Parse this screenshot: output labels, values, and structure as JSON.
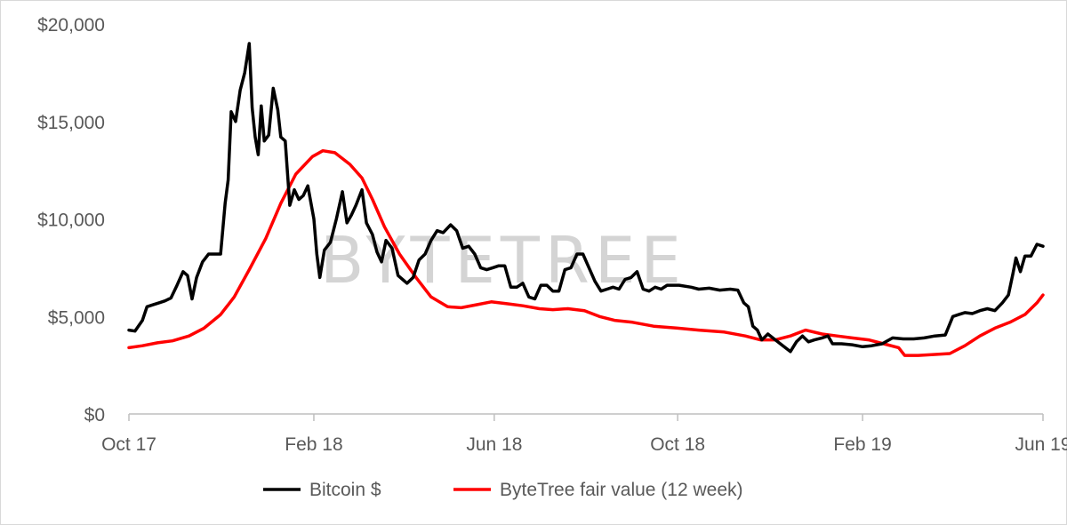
{
  "watermark": "BYTETREE",
  "colors": {
    "bitcoin": "#000000",
    "fair_value": "#ff0000",
    "axis": "#bfbfbf",
    "text": "#595959"
  },
  "chart_data": {
    "type": "line",
    "title": "",
    "xlabel": "",
    "ylabel": "",
    "x_ticks": [
      {
        "date": "2017-10-01",
        "label": "Oct 17"
      },
      {
        "date": "2018-02-01",
        "label": "Feb 18"
      },
      {
        "date": "2018-06-01",
        "label": "Jun 18"
      },
      {
        "date": "2018-10-01",
        "label": "Oct 18"
      },
      {
        "date": "2019-02-01",
        "label": "Feb 19"
      },
      {
        "date": "2019-06-01",
        "label": "Jun 19"
      }
    ],
    "y_ticks": [
      {
        "value": 0,
        "label": "$0"
      },
      {
        "value": 5000,
        "label": "$5,000"
      },
      {
        "value": 10000,
        "label": "$10,000"
      },
      {
        "value": 15000,
        "label": "$15,000"
      },
      {
        "value": 20000,
        "label": "$20,000"
      }
    ],
    "xlim": [
      "2017-10-01",
      "2019-06-01"
    ],
    "ylim": [
      0,
      20000
    ],
    "grid": false,
    "legend_position": "bottom",
    "series": [
      {
        "name": "Bitcoin $",
        "points": [
          [
            "2017-10-01",
            4300
          ],
          [
            "2017-10-05",
            4250
          ],
          [
            "2017-10-10",
            4800
          ],
          [
            "2017-10-13",
            5500
          ],
          [
            "2017-10-17",
            5600
          ],
          [
            "2017-10-21",
            5700
          ],
          [
            "2017-10-25",
            5800
          ],
          [
            "2017-10-29",
            5950
          ],
          [
            "2017-11-02",
            6600
          ],
          [
            "2017-11-06",
            7300
          ],
          [
            "2017-11-09",
            7100
          ],
          [
            "2017-11-12",
            5900
          ],
          [
            "2017-11-15",
            7000
          ],
          [
            "2017-11-19",
            7800
          ],
          [
            "2017-11-23",
            8200
          ],
          [
            "2017-11-27",
            8200
          ],
          [
            "2017-12-01",
            8200
          ],
          [
            "2017-12-04",
            10800
          ],
          [
            "2017-12-06",
            12000
          ],
          [
            "2017-12-08",
            15500
          ],
          [
            "2017-12-11",
            15000
          ],
          [
            "2017-12-14",
            16600
          ],
          [
            "2017-12-17",
            17500
          ],
          [
            "2017-12-20",
            19000
          ],
          [
            "2017-12-22",
            15700
          ],
          [
            "2017-12-24",
            14200
          ],
          [
            "2017-12-26",
            13300
          ],
          [
            "2017-12-28",
            15800
          ],
          [
            "2017-12-30",
            14000
          ],
          [
            "2018-01-02",
            14300
          ],
          [
            "2018-01-05",
            16700
          ],
          [
            "2018-01-08",
            15600
          ],
          [
            "2018-01-10",
            14200
          ],
          [
            "2018-01-13",
            14000
          ],
          [
            "2018-01-16",
            10700
          ],
          [
            "2018-01-19",
            11500
          ],
          [
            "2018-01-22",
            11000
          ],
          [
            "2018-01-25",
            11200
          ],
          [
            "2018-01-28",
            11700
          ],
          [
            "2018-02-01",
            10000
          ],
          [
            "2018-02-03",
            8200
          ],
          [
            "2018-02-05",
            7000
          ],
          [
            "2018-02-08",
            8400
          ],
          [
            "2018-02-12",
            8800
          ],
          [
            "2018-02-16",
            10000
          ],
          [
            "2018-02-20",
            11400
          ],
          [
            "2018-02-23",
            9800
          ],
          [
            "2018-02-26",
            10200
          ],
          [
            "2018-03-01",
            10700
          ],
          [
            "2018-03-05",
            11500
          ],
          [
            "2018-03-08",
            9800
          ],
          [
            "2018-03-12",
            9200
          ],
          [
            "2018-03-15",
            8300
          ],
          [
            "2018-03-18",
            7800
          ],
          [
            "2018-03-21",
            8900
          ],
          [
            "2018-03-25",
            8500
          ],
          [
            "2018-03-29",
            7100
          ],
          [
            "2018-04-01",
            6900
          ],
          [
            "2018-04-04",
            6700
          ],
          [
            "2018-04-08",
            7000
          ],
          [
            "2018-04-12",
            7900
          ],
          [
            "2018-04-16",
            8200
          ],
          [
            "2018-04-20",
            8900
          ],
          [
            "2018-04-24",
            9400
          ],
          [
            "2018-04-28",
            9300
          ],
          [
            "2018-05-03",
            9700
          ],
          [
            "2018-05-07",
            9400
          ],
          [
            "2018-05-11",
            8500
          ],
          [
            "2018-05-15",
            8600
          ],
          [
            "2018-05-19",
            8200
          ],
          [
            "2018-05-23",
            7500
          ],
          [
            "2018-05-27",
            7400
          ],
          [
            "2018-05-31",
            7500
          ],
          [
            "2018-06-04",
            7600
          ],
          [
            "2018-06-08",
            7600
          ],
          [
            "2018-06-12",
            6500
          ],
          [
            "2018-06-16",
            6500
          ],
          [
            "2018-06-20",
            6700
          ],
          [
            "2018-06-24",
            6000
          ],
          [
            "2018-06-28",
            5900
          ],
          [
            "2018-07-02",
            6600
          ],
          [
            "2018-07-06",
            6600
          ],
          [
            "2018-07-10",
            6300
          ],
          [
            "2018-07-14",
            6300
          ],
          [
            "2018-07-18",
            7400
          ],
          [
            "2018-07-22",
            7500
          ],
          [
            "2018-07-26",
            8200
          ],
          [
            "2018-07-30",
            8200
          ],
          [
            "2018-08-03",
            7500
          ],
          [
            "2018-08-07",
            6800
          ],
          [
            "2018-08-11",
            6300
          ],
          [
            "2018-08-15",
            6400
          ],
          [
            "2018-08-19",
            6500
          ],
          [
            "2018-08-23",
            6400
          ],
          [
            "2018-08-27",
            6900
          ],
          [
            "2018-08-31",
            7000
          ],
          [
            "2018-09-04",
            7300
          ],
          [
            "2018-09-08",
            6400
          ],
          [
            "2018-09-12",
            6300
          ],
          [
            "2018-09-16",
            6500
          ],
          [
            "2018-09-20",
            6400
          ],
          [
            "2018-09-24",
            6600
          ],
          [
            "2018-09-28",
            6600
          ],
          [
            "2018-10-02",
            6600
          ],
          [
            "2018-10-10",
            6500
          ],
          [
            "2018-10-15",
            6400
          ],
          [
            "2018-10-22",
            6450
          ],
          [
            "2018-10-29",
            6350
          ],
          [
            "2018-11-05",
            6400
          ],
          [
            "2018-11-10",
            6350
          ],
          [
            "2018-11-14",
            5700
          ],
          [
            "2018-11-17",
            5500
          ],
          [
            "2018-11-20",
            4500
          ],
          [
            "2018-11-23",
            4300
          ],
          [
            "2018-11-26",
            3800
          ],
          [
            "2018-11-30",
            4100
          ],
          [
            "2018-12-05",
            3800
          ],
          [
            "2018-12-10",
            3500
          ],
          [
            "2018-12-15",
            3200
          ],
          [
            "2018-12-19",
            3700
          ],
          [
            "2018-12-23",
            4000
          ],
          [
            "2018-12-27",
            3700
          ],
          [
            "2018-12-31",
            3800
          ],
          [
            "2019-01-05",
            3900
          ],
          [
            "2019-01-09",
            4000
          ],
          [
            "2019-01-12",
            3600
          ],
          [
            "2019-01-18",
            3600
          ],
          [
            "2019-01-25",
            3550
          ],
          [
            "2019-02-01",
            3450
          ],
          [
            "2019-02-07",
            3500
          ],
          [
            "2019-02-14",
            3600
          ],
          [
            "2019-02-21",
            3900
          ],
          [
            "2019-02-28",
            3850
          ],
          [
            "2019-03-07",
            3850
          ],
          [
            "2019-03-14",
            3900
          ],
          [
            "2019-03-21",
            4000
          ],
          [
            "2019-03-28",
            4050
          ],
          [
            "2019-04-02",
            5000
          ],
          [
            "2019-04-06",
            5100
          ],
          [
            "2019-04-10",
            5200
          ],
          [
            "2019-04-15",
            5150
          ],
          [
            "2019-04-20",
            5300
          ],
          [
            "2019-04-25",
            5400
          ],
          [
            "2019-04-30",
            5300
          ],
          [
            "2019-05-05",
            5700
          ],
          [
            "2019-05-09",
            6100
          ],
          [
            "2019-05-12",
            7200
          ],
          [
            "2019-05-14",
            8000
          ],
          [
            "2019-05-17",
            7300
          ],
          [
            "2019-05-20",
            8100
          ],
          [
            "2019-05-24",
            8100
          ],
          [
            "2019-05-28",
            8700
          ],
          [
            "2019-06-01",
            8600
          ]
        ]
      },
      {
        "name": "ByteTree fair value (12 week)",
        "points": [
          [
            "2017-10-01",
            3400
          ],
          [
            "2017-10-10",
            3500
          ],
          [
            "2017-10-20",
            3650
          ],
          [
            "2017-10-30",
            3750
          ],
          [
            "2017-11-10",
            4000
          ],
          [
            "2017-11-20",
            4400
          ],
          [
            "2017-12-01",
            5100
          ],
          [
            "2017-12-10",
            6000
          ],
          [
            "2017-12-20",
            7400
          ],
          [
            "2017-12-31",
            9000
          ],
          [
            "2018-01-10",
            10800
          ],
          [
            "2018-01-20",
            12300
          ],
          [
            "2018-01-31",
            13200
          ],
          [
            "2018-02-07",
            13500
          ],
          [
            "2018-02-15",
            13400
          ],
          [
            "2018-02-25",
            12800
          ],
          [
            "2018-03-05",
            12100
          ],
          [
            "2018-03-12",
            11000
          ],
          [
            "2018-03-20",
            9600
          ],
          [
            "2018-03-30",
            8200
          ],
          [
            "2018-04-10",
            7000
          ],
          [
            "2018-04-20",
            6000
          ],
          [
            "2018-05-01",
            5500
          ],
          [
            "2018-05-10",
            5450
          ],
          [
            "2018-05-20",
            5600
          ],
          [
            "2018-05-30",
            5750
          ],
          [
            "2018-06-10",
            5650
          ],
          [
            "2018-06-20",
            5550
          ],
          [
            "2018-07-01",
            5400
          ],
          [
            "2018-07-10",
            5350
          ],
          [
            "2018-07-20",
            5400
          ],
          [
            "2018-07-31",
            5300
          ],
          [
            "2018-08-10",
            5000
          ],
          [
            "2018-08-20",
            4800
          ],
          [
            "2018-09-01",
            4700
          ],
          [
            "2018-09-15",
            4500
          ],
          [
            "2018-10-01",
            4400
          ],
          [
            "2018-10-15",
            4300
          ],
          [
            "2018-11-01",
            4200
          ],
          [
            "2018-11-15",
            4000
          ],
          [
            "2018-11-25",
            3800
          ],
          [
            "2018-12-05",
            3800
          ],
          [
            "2018-12-15",
            4000
          ],
          [
            "2018-12-25",
            4300
          ],
          [
            "2019-01-05",
            4100
          ],
          [
            "2019-01-15",
            4000
          ],
          [
            "2019-01-25",
            3900
          ],
          [
            "2019-02-05",
            3800
          ],
          [
            "2019-02-15",
            3600
          ],
          [
            "2019-02-25",
            3400
          ],
          [
            "2019-03-01",
            3000
          ],
          [
            "2019-03-10",
            3000
          ],
          [
            "2019-03-20",
            3050
          ],
          [
            "2019-03-31",
            3100
          ],
          [
            "2019-04-10",
            3500
          ],
          [
            "2019-04-20",
            4000
          ],
          [
            "2019-04-30",
            4400
          ],
          [
            "2019-05-10",
            4700
          ],
          [
            "2019-05-20",
            5100
          ],
          [
            "2019-05-28",
            5700
          ],
          [
            "2019-06-01",
            6100
          ]
        ]
      }
    ]
  }
}
